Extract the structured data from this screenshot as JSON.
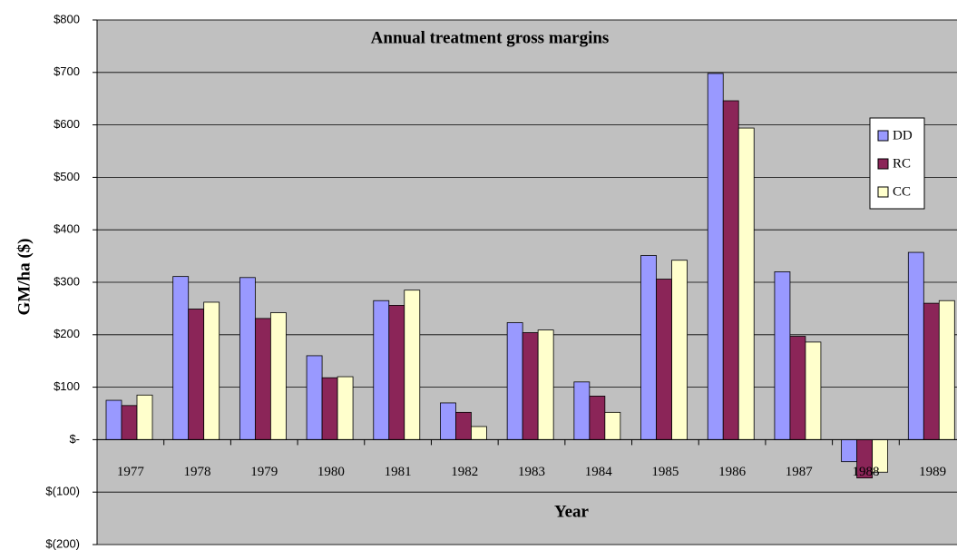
{
  "chart_data": {
    "type": "bar",
    "title": "Annual treatment gross margins",
    "x_label": "Year",
    "y_label": "GM/ha ($)",
    "categories": [
      "1977",
      "1978",
      "1979",
      "1980",
      "1981",
      "1982",
      "1983",
      "1984",
      "1985",
      "1986",
      "1987",
      "1988",
      "1989"
    ],
    "series": [
      {
        "name": "DD",
        "color": "#9999ff",
        "values": [
          75,
          311,
          309,
          160,
          265,
          70,
          223,
          110,
          351,
          698,
          320,
          -42,
          357
        ]
      },
      {
        "name": "RC",
        "color": "#8b2558",
        "values": [
          65,
          249,
          231,
          118,
          256,
          52,
          204,
          83,
          306,
          646,
          197,
          -73,
          260
        ]
      },
      {
        "name": "CC",
        "color": "#ffffcc",
        "values": [
          85,
          262,
          242,
          120,
          285,
          25,
          209,
          52,
          342,
          594,
          186,
          -62,
          265
        ]
      }
    ],
    "ylim": [
      -200,
      800
    ],
    "yticks": [
      {
        "value": -200,
        "label": "$(200)"
      },
      {
        "value": -100,
        "label": "$(100)"
      },
      {
        "value": 0,
        "label": "$-"
      },
      {
        "value": 100,
        "label": "$100"
      },
      {
        "value": 200,
        "label": "$200"
      },
      {
        "value": 300,
        "label": "$300"
      },
      {
        "value": 400,
        "label": "$400"
      },
      {
        "value": 500,
        "label": "$500"
      },
      {
        "value": 600,
        "label": "$600"
      },
      {
        "value": 700,
        "label": "$700"
      },
      {
        "value": 800,
        "label": "$800"
      }
    ],
    "grid": true,
    "legend": "right"
  }
}
